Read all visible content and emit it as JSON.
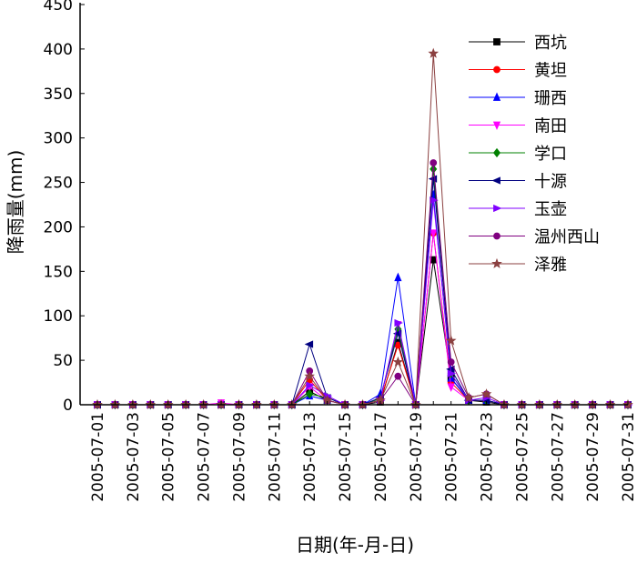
{
  "chart_data": {
    "type": "line",
    "xlabel": "日期(年-月-日)",
    "ylabel": "降雨量(mm)",
    "ylim": [
      0,
      450
    ],
    "yticks": [
      0,
      50,
      100,
      150,
      200,
      250,
      300,
      350,
      400,
      450
    ],
    "x": [
      "2005-07-01",
      "2005-07-02",
      "2005-07-03",
      "2005-07-04",
      "2005-07-05",
      "2005-07-06",
      "2005-07-07",
      "2005-07-08",
      "2005-07-09",
      "2005-07-10",
      "2005-07-11",
      "2005-07-12",
      "2005-07-13",
      "2005-07-14",
      "2005-07-15",
      "2005-07-16",
      "2005-07-17",
      "2005-07-18",
      "2005-07-19",
      "2005-07-20",
      "2005-07-21",
      "2005-07-22",
      "2005-07-23",
      "2005-07-24",
      "2005-07-25",
      "2005-07-26",
      "2005-07-27",
      "2005-07-28",
      "2005-07-29",
      "2005-07-30",
      "2005-07-31"
    ],
    "xtick_labels": [
      "2005-07-01",
      "2005-07-03",
      "2005-07-05",
      "2005-07-07",
      "2005-07-09",
      "2005-07-11",
      "2005-07-13",
      "2005-07-15",
      "2005-07-17",
      "2005-07-19",
      "2005-07-21",
      "2005-07-23",
      "2005-07-25",
      "2005-07-27",
      "2005-07-29",
      "2005-07-31"
    ],
    "legend_position": "top-right",
    "grid": false,
    "series": [
      {
        "name": "西坑",
        "color": "#000000",
        "marker": "square",
        "values": [
          0,
          0,
          0,
          0,
          0,
          0,
          0,
          0,
          0,
          0,
          0,
          0,
          15,
          5,
          0,
          0,
          3,
          70,
          0,
          163,
          30,
          5,
          3,
          0,
          0,
          0,
          0,
          0,
          0,
          0,
          0
        ]
      },
      {
        "name": "黄坦",
        "color": "#ff0000",
        "marker": "circle",
        "values": [
          0,
          0,
          0,
          0,
          0,
          0,
          0,
          0,
          0,
          0,
          0,
          0,
          28,
          5,
          0,
          0,
          5,
          67,
          0,
          193,
          25,
          5,
          5,
          0,
          0,
          0,
          0,
          0,
          0,
          0,
          0
        ]
      },
      {
        "name": "珊西",
        "color": "#0000ff",
        "marker": "triangle-up",
        "values": [
          0,
          0,
          0,
          0,
          0,
          0,
          0,
          0,
          0,
          0,
          0,
          0,
          10,
          5,
          0,
          0,
          12,
          143,
          0,
          236,
          30,
          5,
          5,
          0,
          0,
          0,
          0,
          0,
          0,
          0,
          0
        ]
      },
      {
        "name": "南田",
        "color": "#ff00ff",
        "marker": "triangle-down",
        "values": [
          0,
          0,
          0,
          0,
          0,
          0,
          0,
          2,
          0,
          0,
          0,
          0,
          20,
          5,
          0,
          0,
          5,
          90,
          0,
          193,
          20,
          5,
          5,
          0,
          0,
          0,
          0,
          0,
          0,
          0,
          0
        ]
      },
      {
        "name": "学口",
        "color": "#008000",
        "marker": "diamond",
        "values": [
          0,
          0,
          0,
          0,
          0,
          0,
          0,
          0,
          0,
          0,
          0,
          0,
          12,
          8,
          0,
          0,
          7,
          85,
          0,
          265,
          35,
          5,
          5,
          0,
          0,
          0,
          0,
          0,
          0,
          0,
          0
        ]
      },
      {
        "name": "十源",
        "color": "#000080",
        "marker": "triangle-left",
        "values": [
          0,
          0,
          0,
          0,
          0,
          0,
          0,
          0,
          0,
          0,
          0,
          0,
          68,
          8,
          0,
          0,
          8,
          80,
          0,
          254,
          40,
          5,
          5,
          0,
          0,
          0,
          0,
          0,
          0,
          0,
          0
        ]
      },
      {
        "name": "玉壶",
        "color": "#8000ff",
        "marker": "triangle-right",
        "values": [
          0,
          0,
          0,
          0,
          0,
          0,
          0,
          0,
          0,
          0,
          0,
          0,
          22,
          10,
          0,
          0,
          5,
          92,
          0,
          230,
          35,
          5,
          8,
          0,
          0,
          0,
          0,
          0,
          0,
          0,
          0
        ]
      },
      {
        "name": "温州西山",
        "color": "#800080",
        "marker": "circle",
        "values": [
          0,
          0,
          0,
          0,
          0,
          0,
          0,
          0,
          0,
          0,
          0,
          0,
          38,
          5,
          0,
          0,
          5,
          32,
          0,
          272,
          48,
          8,
          12,
          0,
          0,
          0,
          0,
          0,
          0,
          0,
          0
        ]
      },
      {
        "name": "泽雅",
        "color": "#8b4040",
        "marker": "star",
        "values": [
          0,
          0,
          0,
          0,
          0,
          0,
          0,
          0,
          0,
          0,
          0,
          0,
          32,
          5,
          0,
          0,
          5,
          48,
          0,
          395,
          72,
          8,
          12,
          0,
          0,
          0,
          0,
          0,
          0,
          0,
          0
        ]
      }
    ]
  }
}
